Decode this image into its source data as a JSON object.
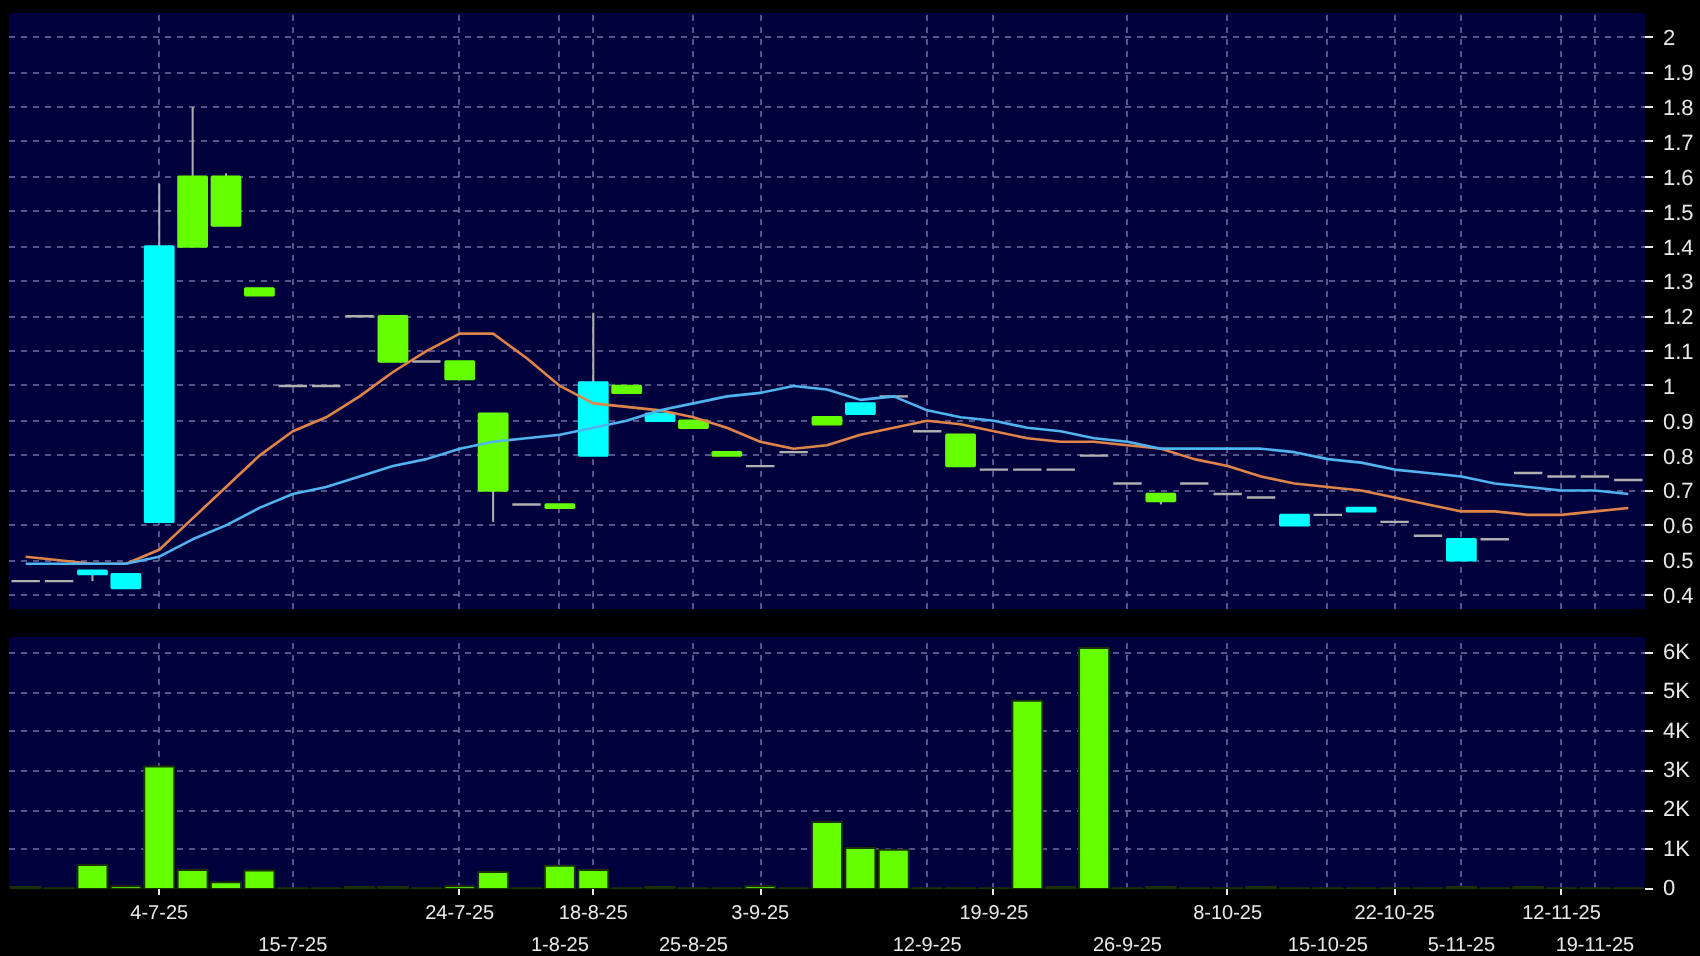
{
  "chart_data": [
    {
      "type": "candlestick",
      "categories": [
        null,
        null,
        null,
        null,
        null,
        null,
        null,
        null,
        null,
        null,
        null,
        null,
        null,
        null,
        null,
        null,
        null,
        null,
        null,
        null,
        null,
        null,
        null,
        null,
        null,
        null,
        null,
        null,
        null,
        null,
        null,
        null,
        null,
        null,
        null,
        null,
        null,
        null,
        null,
        null,
        null,
        null,
        null,
        null,
        null,
        null,
        null,
        null,
        null
      ],
      "ohlc": [
        [
          0.44,
          0.44,
          0.44,
          0.44
        ],
        [
          0.44,
          0.44,
          0.44,
          0.44
        ],
        [
          0.46,
          0.47,
          0.44,
          0.47
        ],
        [
          0.42,
          0.46,
          0.42,
          0.46
        ],
        [
          0.61,
          1.58,
          0.61,
          1.4
        ],
        [
          1.6,
          1.8,
          1.4,
          1.4
        ],
        [
          1.6,
          1.61,
          1.46,
          1.46
        ],
        [
          1.28,
          1.28,
          1.26,
          1.26
        ],
        [
          1.0,
          1.0,
          1.0,
          1.0
        ],
        [
          1.0,
          1.0,
          1.0,
          1.0
        ],
        [
          1.2,
          1.2,
          1.2,
          1.2
        ],
        [
          1.2,
          1.2,
          1.07,
          1.07
        ],
        [
          1.07,
          1.07,
          1.07,
          1.07
        ],
        [
          1.07,
          1.07,
          1.02,
          1.02
        ],
        [
          0.92,
          0.92,
          0.61,
          0.7
        ],
        [
          0.66,
          0.66,
          0.66,
          0.66
        ],
        [
          0.66,
          0.66,
          0.65,
          0.65
        ],
        [
          0.8,
          1.21,
          0.8,
          1.01
        ],
        [
          1.0,
          1.0,
          0.98,
          0.98
        ],
        [
          0.9,
          0.92,
          0.9,
          0.92
        ],
        [
          0.9,
          0.9,
          0.88,
          0.88
        ],
        [
          0.81,
          0.81,
          0.8,
          0.8
        ],
        [
          0.77,
          0.77,
          0.77,
          0.77
        ],
        [
          0.81,
          0.81,
          0.81,
          0.81
        ],
        [
          0.91,
          0.91,
          0.89,
          0.89
        ],
        [
          0.92,
          0.95,
          0.92,
          0.95
        ],
        [
          0.97,
          0.97,
          0.97,
          0.97
        ],
        [
          0.87,
          0.87,
          0.87,
          0.87
        ],
        [
          0.86,
          0.86,
          0.77,
          0.77
        ],
        [
          0.76,
          0.76,
          0.76,
          0.76
        ],
        [
          0.76,
          0.76,
          0.76,
          0.76
        ],
        [
          0.76,
          0.76,
          0.76,
          0.76
        ],
        [
          0.8,
          0.8,
          0.8,
          0.8
        ],
        [
          0.72,
          0.72,
          0.72,
          0.72
        ],
        [
          0.69,
          0.69,
          0.66,
          0.67
        ],
        [
          0.72,
          0.72,
          0.72,
          0.72
        ],
        [
          0.69,
          0.69,
          0.69,
          0.69
        ],
        [
          0.68,
          0.68,
          0.68,
          0.68
        ],
        [
          0.6,
          0.63,
          0.6,
          0.63
        ],
        [
          0.63,
          0.63,
          0.63,
          0.63
        ],
        [
          0.64,
          0.65,
          0.64,
          0.65
        ],
        [
          0.61,
          0.61,
          0.61,
          0.61
        ],
        [
          0.57,
          0.57,
          0.57,
          0.57
        ],
        [
          0.5,
          0.56,
          0.5,
          0.56
        ],
        [
          0.56,
          0.56,
          0.56,
          0.56
        ],
        [
          0.75,
          0.75,
          0.75,
          0.75
        ],
        [
          0.74,
          0.74,
          0.74,
          0.74
        ],
        [
          0.74,
          0.74,
          0.74,
          0.74
        ],
        [
          0.73,
          0.73,
          0.73,
          0.73
        ]
      ],
      "colors": [
        "#b0b0b0",
        "#b0b0b0",
        "#00ffff",
        "#00ffff",
        "#00ffff",
        "#66ff00",
        "#66ff00",
        "#66ff00",
        "#b0b0b0",
        "#b0b0b0",
        "#b0b0b0",
        "#66ff00",
        "#b0b0b0",
        "#66ff00",
        "#66ff00",
        "#b0b0b0",
        "#66ff00",
        "#00ffff",
        "#66ff00",
        "#00ffff",
        "#66ff00",
        "#66ff00",
        "#b0b0b0",
        "#b0b0b0",
        "#66ff00",
        "#00ffff",
        "#b0b0b0",
        "#b0b0b0",
        "#66ff00",
        "#b0b0b0",
        "#b0b0b0",
        "#b0b0b0",
        "#b0b0b0",
        "#b0b0b0",
        "#66ff00",
        "#b0b0b0",
        "#b0b0b0",
        "#b0b0b0",
        "#00ffff",
        "#b0b0b0",
        "#00ffff",
        "#b0b0b0",
        "#b0b0b0",
        "#00ffff",
        "#b0b0b0",
        "#b0b0b0",
        "#b0b0b0",
        "#b0b0b0",
        "#b0b0b0"
      ],
      "series": [
        {
          "type": "line",
          "color": "#e0844a",
          "values": [
            0.51,
            0.5,
            0.49,
            0.49,
            0.53,
            0.62,
            0.71,
            0.8,
            0.87,
            0.91,
            0.97,
            1.04,
            1.1,
            1.15,
            1.15,
            1.08,
            1.0,
            0.95,
            0.94,
            0.93,
            0.91,
            0.88,
            0.84,
            0.82,
            0.83,
            0.86,
            0.88,
            0.9,
            0.89,
            0.87,
            0.85,
            0.84,
            0.84,
            0.83,
            0.82,
            0.79,
            0.77,
            0.74,
            0.72,
            0.71,
            0.7,
            0.68,
            0.66,
            0.64,
            0.64,
            0.63,
            0.63,
            0.64,
            0.65
          ]
        },
        {
          "type": "line",
          "color": "#4fb4f0",
          "values": [
            0.49,
            0.49,
            0.49,
            0.49,
            0.51,
            0.56,
            0.6,
            0.65,
            0.69,
            0.71,
            0.74,
            0.77,
            0.79,
            0.82,
            0.84,
            0.85,
            0.86,
            0.88,
            0.9,
            0.93,
            0.95,
            0.97,
            0.98,
            1.0,
            0.99,
            0.96,
            0.97,
            0.93,
            0.91,
            0.9,
            0.88,
            0.87,
            0.85,
            0.84,
            0.82,
            0.82,
            0.82,
            0.82,
            0.81,
            0.79,
            0.78,
            0.76,
            0.75,
            0.74,
            0.72,
            0.71,
            0.7,
            0.7,
            0.69
          ]
        }
      ],
      "ylim": [
        0.36,
        2.07
      ],
      "yticks": [
        0.4,
        0.5,
        0.6,
        0.7,
        0.8,
        0.9,
        1,
        1.1,
        1.2,
        1.3,
        1.4,
        1.5,
        1.6,
        1.7,
        1.8,
        1.9,
        2
      ],
      "grid": true,
      "tick_labels": "y"
    },
    {
      "type": "bar",
      "categories": [
        null,
        null,
        null,
        null,
        "4-7-25",
        null,
        null,
        null,
        "15-7-25",
        null,
        null,
        null,
        null,
        "24-7-25",
        null,
        null,
        "1-8-25",
        "18-8-25",
        null,
        null,
        "25-8-25",
        null,
        "3-9-25",
        null,
        null,
        null,
        null,
        "12-9-25",
        null,
        "19-9-25",
        null,
        null,
        null,
        "26-9-25",
        null,
        null,
        "8-10-25",
        null,
        null,
        "15-10-25",
        null,
        "22-10-25",
        null,
        "5-11-25",
        null,
        null,
        "12-11-25",
        "19-11-25",
        null
      ],
      "values": [
        50,
        20,
        610,
        70,
        3110,
        480,
        170,
        470,
        20,
        20,
        50,
        50,
        20,
        70,
        430,
        20,
        590,
        480,
        20,
        50,
        20,
        20,
        70,
        20,
        1700,
        1040,
        1000,
        20,
        20,
        20,
        4780,
        50,
        6120,
        20,
        50,
        20,
        20,
        50,
        20,
        20,
        20,
        20,
        20,
        50,
        20,
        50,
        20,
        20,
        20
      ],
      "color": "#66ff00",
      "ylim": [
        0,
        6400
      ],
      "yticks": [
        0,
        {
          "value": 1000,
          "label": "1K"
        },
        {
          "value": 2000,
          "label": "2K"
        },
        {
          "value": 3000,
          "label": "3K"
        },
        {
          "value": 4000,
          "label": "4K"
        },
        {
          "value": 5000,
          "label": "5K"
        },
        {
          "value": 6000,
          "label": "6K"
        }
      ],
      "grid": true
    }
  ]
}
